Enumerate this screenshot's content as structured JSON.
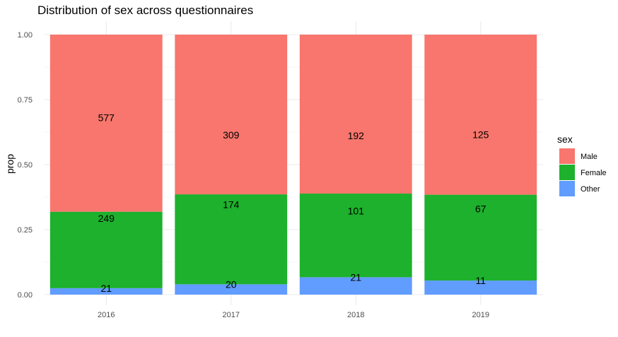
{
  "chart_data": {
    "type": "bar",
    "stacked": true,
    "title": "Distribution of sex across questionnaires",
    "xlabel": "",
    "ylabel": "prop",
    "categories": [
      "2016",
      "2017",
      "2018",
      "2019"
    ],
    "ylim": [
      0,
      1
    ],
    "yticks": [
      "0.00",
      "0.25",
      "0.50",
      "0.75",
      "1.00"
    ],
    "grid": true,
    "legend": {
      "title": "sex",
      "position": "right"
    },
    "series": [
      {
        "name": "Other",
        "color": "#619CFF",
        "counts": [
          21,
          20,
          21,
          11
        ]
      },
      {
        "name": "Female",
        "color": "#1DB12D",
        "counts": [
          249,
          174,
          101,
          67
        ]
      },
      {
        "name": "Male",
        "color": "#F8766D",
        "counts": [
          577,
          309,
          192,
          125
        ]
      }
    ],
    "legend_order": [
      "Male",
      "Female",
      "Other"
    ]
  }
}
